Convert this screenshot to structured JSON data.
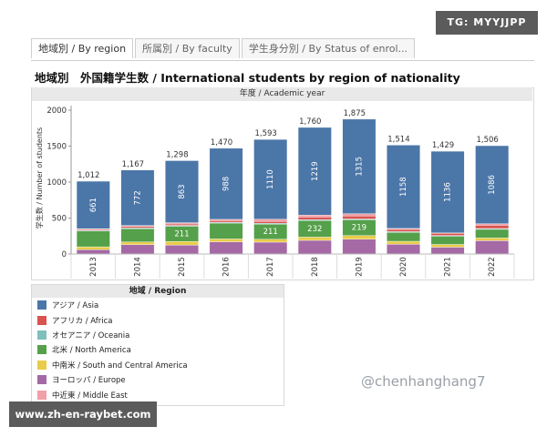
{
  "overlay": {
    "tg_badge": "TG: MYYJJPP",
    "watermark": "@chenhanghang7",
    "url": "www.zh-en-raybet.com"
  },
  "tabs": [
    {
      "label": "地域別 / By region",
      "active": true
    },
    {
      "label": "所属別 / By faculty",
      "active": false
    },
    {
      "label": "学生身分別 / By Status of enrol...",
      "active": false
    }
  ],
  "chart_data": {
    "type": "bar",
    "stacked": true,
    "title": "地域別　外国籍学生数 / International students by region of nationality",
    "xlabel": "年度 / Academic year",
    "ylabel": "学生数 / Number of students",
    "ylim": [
      0,
      2000
    ],
    "yticks": [
      0,
      500,
      1000,
      1500,
      2000
    ],
    "categories": [
      "2013",
      "2014",
      "2015",
      "2016",
      "2017",
      "2018",
      "2019",
      "2020",
      "2021",
      "2022"
    ],
    "totals": [
      1012,
      1167,
      1298,
      1470,
      1593,
      1760,
      1875,
      1514,
      1429,
      1506
    ],
    "series": [
      {
        "name": "ヨーロッパ / Europe",
        "color": "#a569a5",
        "values": [
          60,
          130,
          125,
          170,
          165,
          190,
          205,
          135,
          95,
          185
        ]
      },
      {
        "name": "中南米 / South and Central America",
        "color": "#e8cc4a",
        "values": [
          40,
          38,
          50,
          40,
          40,
          45,
          52,
          42,
          38,
          38
        ]
      },
      {
        "name": "北米 / North America",
        "color": "#55a04a",
        "values": [
          220,
          185,
          211,
          220,
          211,
          232,
          219,
          125,
          115,
          120
        ]
      },
      {
        "name": "オセアニア / Oceania",
        "color": "#7fbfbd",
        "values": [
          10,
          12,
          12,
          12,
          12,
          12,
          12,
          10,
          10,
          12
        ]
      },
      {
        "name": "アフリカ / Africa",
        "color": "#d9534f",
        "values": [
          15,
          20,
          20,
          22,
          25,
          35,
          40,
          30,
          30,
          45
        ]
      },
      {
        "name": "中近東 / Middle East",
        "color": "#f2a0a8",
        "values": [
          6,
          10,
          17,
          18,
          30,
          27,
          32,
          14,
          5,
          20
        ]
      },
      {
        "name": "アジア / Asia",
        "color": "#4b76a8",
        "values": [
          661,
          772,
          863,
          988,
          1110,
          1219,
          1315,
          1158,
          1136,
          1086
        ]
      }
    ],
    "value_labels_series": "アジア / Asia",
    "value_labels_extra": [
      {
        "series": "北米 / North America",
        "categories": [
          "2015",
          "2017",
          "2018",
          "2019"
        ]
      }
    ],
    "legend": {
      "title": "地域 / Region",
      "position": "bottom-left",
      "items": [
        {
          "label": "アジア / Asia",
          "color": "#4b76a8"
        },
        {
          "label": "アフリカ / Africa",
          "color": "#d9534f"
        },
        {
          "label": "オセアニア / Oceania",
          "color": "#7fbfbd"
        },
        {
          "label": "北米 / North America",
          "color": "#55a04a"
        },
        {
          "label": "中南米 / South and Central America",
          "color": "#e8cc4a"
        },
        {
          "label": "ヨーロッパ / Europe",
          "color": "#a569a5"
        },
        {
          "label": "中近東 / Middle East",
          "color": "#f2a0a8"
        }
      ]
    }
  }
}
